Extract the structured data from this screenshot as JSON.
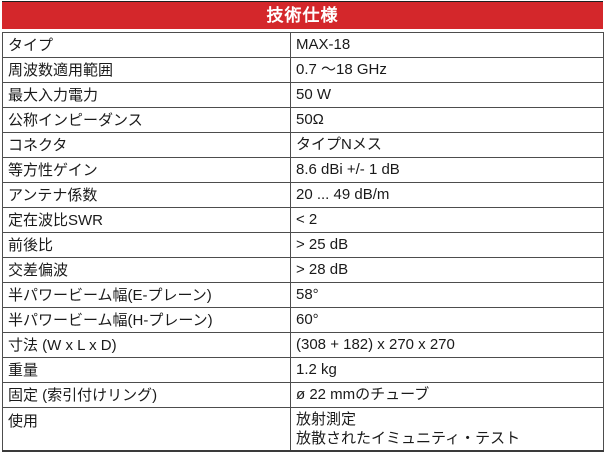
{
  "colors": {
    "header_bg": "#d4272b",
    "header_text": "#ffffff",
    "border": "#4d4d4d",
    "text": "#1a1a1a",
    "page_bg": "#ffffff"
  },
  "header": {
    "title": "技術仕様"
  },
  "table": {
    "rows": [
      {
        "label": "タイプ",
        "value": "MAX-18"
      },
      {
        "label": "周波数適用範囲",
        "value": "0.7 ～18 GHz"
      },
      {
        "label": "最大入力電力",
        "value": "50 W"
      },
      {
        "label": "公称インピーダンス",
        "value": "50Ω"
      },
      {
        "label": "コネクタ",
        "value": "タイプNメス"
      },
      {
        "label": "等方性ゲイン",
        "value": "8.6 dBi +/- 1 dB"
      },
      {
        "label": "アンテナ係数",
        "value": "20 ... 49 dB/m"
      },
      {
        "label": "定在波比SWR",
        "value": "< 2"
      },
      {
        "label": "前後比",
        "value": "> 25 dB"
      },
      {
        "label": "交差偏波",
        "value": "> 28 dB"
      },
      {
        "label": "半パワービーム幅(E-プレーン)",
        "value": "58°"
      },
      {
        "label": "半パワービーム幅(H-プレーン)",
        "value": "60°"
      },
      {
        "label": "寸法 (W x L x D)",
        "value": "(308 + 182) x 270 x 270"
      },
      {
        "label": "重量",
        "value": "1.2 kg"
      },
      {
        "label": "固定 (索引付けリング)",
        "value": "ø 22 mmのチューブ"
      },
      {
        "label": "使用",
        "value_lines": [
          "放射測定",
          "放散されたイミュニティ・テスト"
        ]
      }
    ]
  }
}
